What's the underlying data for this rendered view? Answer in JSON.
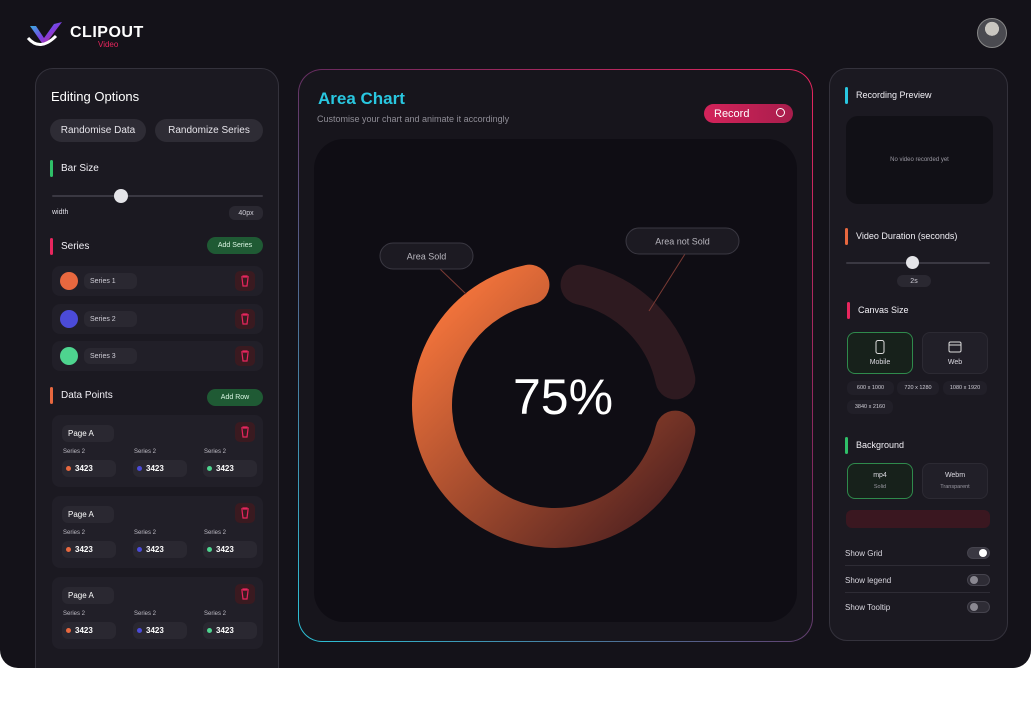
{
  "header": {
    "brand": "CLIPOUT",
    "brand_sub": "Video"
  },
  "editing": {
    "title": "Editing Options",
    "actions": [
      "Randomise Data",
      "Randomize Series"
    ],
    "bar_size": {
      "label": "Bar Size",
      "field": "width",
      "value": "40px"
    },
    "series": {
      "label": "Series",
      "add_button": "Add Series",
      "items": [
        {
          "name": "Series 1",
          "color": "#e8683f"
        },
        {
          "name": "Series 2",
          "color": "#4b4bd8"
        },
        {
          "name": "Series 3",
          "color": "#4ed48f"
        }
      ]
    },
    "data_points": {
      "label": "Data Points",
      "add_button": "Add Row",
      "rows": [
        {
          "page": "Page A",
          "cells": [
            {
              "series": "Series 2",
              "value": 3423,
              "color": "#e8683f"
            },
            {
              "series": "Series 2",
              "value": 3423,
              "color": "#4b4bd8"
            },
            {
              "series": "Series 2",
              "value": 3423,
              "color": "#4ed48f"
            }
          ]
        },
        {
          "page": "Page A",
          "cells": [
            {
              "series": "Series 2",
              "value": 3423,
              "color": "#e8683f"
            },
            {
              "series": "Series 2",
              "value": 3423,
              "color": "#4b4bd8"
            },
            {
              "series": "Series 2",
              "value": 3423,
              "color": "#4ed48f"
            }
          ]
        },
        {
          "page": "Page A",
          "cells": [
            {
              "series": "Series 2",
              "value": 3423,
              "color": "#e8683f"
            },
            {
              "series": "Series 2",
              "value": 3423,
              "color": "#4b4bd8"
            },
            {
              "series": "Series 2",
              "value": 3423,
              "color": "#4ed48f"
            }
          ]
        }
      ]
    }
  },
  "chart_panel": {
    "title": "Area Chart",
    "subtitle": "Customise your chart and animate it accordingly",
    "record_button": "Record",
    "chart": {
      "type": "donut",
      "value": 75,
      "value_label": "75%",
      "labels": [
        "Area Sold",
        "Area not Sold"
      ],
      "colors": [
        "#ff7a3d",
        "#2e1a20"
      ]
    }
  },
  "recording": {
    "preview": {
      "title": "Recording Preview",
      "empty": "No video recorded yet"
    },
    "duration": {
      "title": "Video Duration (seconds)",
      "value": "2s"
    },
    "canvas": {
      "title": "Canvas Size",
      "options": [
        {
          "label": "Mobile",
          "selected": true
        },
        {
          "label": "Web",
          "selected": false
        }
      ],
      "resolutions": [
        "600 x 1000",
        "720 x 1280",
        "1080 x 1920",
        "3840 x 2160"
      ]
    },
    "background": {
      "title": "Background",
      "options": [
        {
          "label": "mp4",
          "sub": "Solid",
          "selected": true
        },
        {
          "label": "Webm",
          "sub": "Transparent",
          "selected": false
        }
      ]
    },
    "toggles": [
      {
        "label": "Show Grid",
        "on": true
      },
      {
        "label": "Show legend",
        "on": false
      },
      {
        "label": "Show Tooltip",
        "on": false
      }
    ]
  }
}
